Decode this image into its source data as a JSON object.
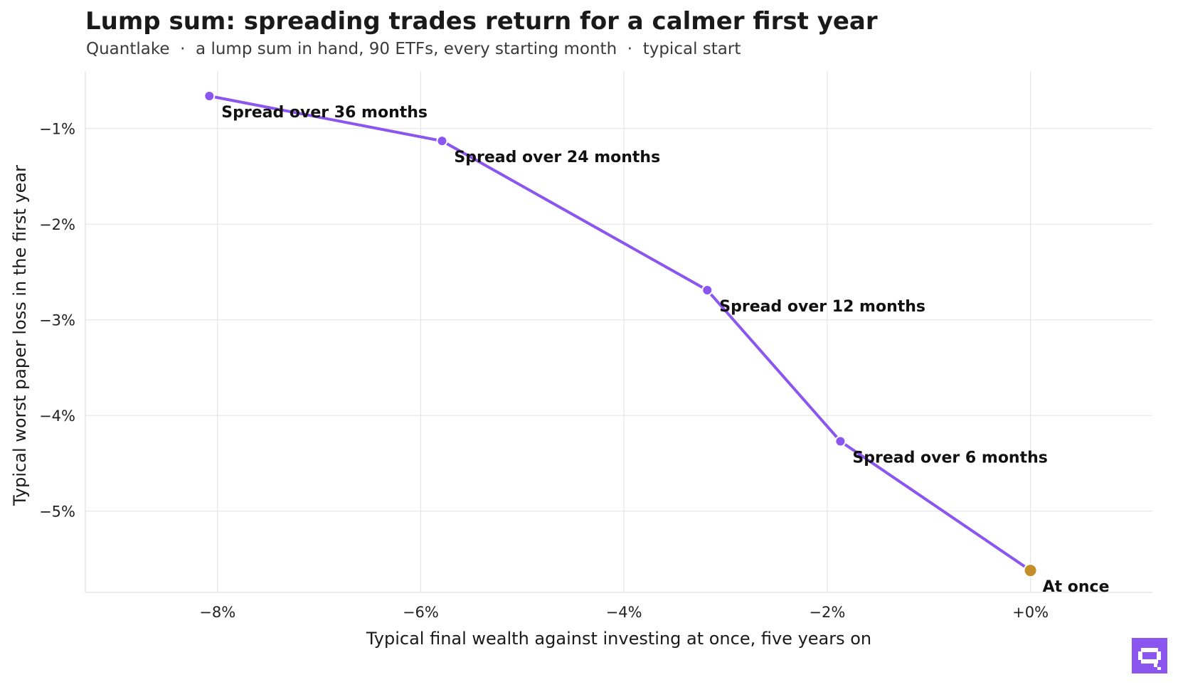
{
  "title": "Lump sum: spreading trades return for a calmer first year",
  "subtitle": "Quantlake  ·  a lump sum in hand, 90 ETFs, every starting month  ·  typical start",
  "colors": {
    "line": "#8b55f0",
    "highlight": "#c48f2a",
    "grid": "#e6e6e6",
    "logo_bg": "#8b55f0"
  },
  "logo_icon": "quantlake-logo-icon",
  "chart_data": {
    "type": "line",
    "title": "Lump sum: spreading trades return for a calmer first year",
    "subtitle": "Quantlake  ·  a lump sum in hand, 90 ETFs, every starting month  ·  typical start",
    "xlabel": "Typical final wealth against investing at once, five years on",
    "ylabel": "Typical worst paper loss in the first year",
    "xlim": [
      -9.3,
      1.2
    ],
    "ylim": [
      -5.85,
      -0.4
    ],
    "x_ticks": [
      -8,
      -6,
      -4,
      -2,
      0
    ],
    "x_tick_labels": [
      "−8%",
      "−6%",
      "−4%",
      "−2%",
      "+0%"
    ],
    "y_ticks": [
      -1,
      -2,
      -3,
      -4,
      -5
    ],
    "y_tick_labels": [
      "−1%",
      "−2%",
      "−3%",
      "−4%",
      "−5%"
    ],
    "grid": true,
    "points": [
      {
        "label": "Spread over 36 months",
        "x": -8.08,
        "y": -0.66,
        "highlight": false
      },
      {
        "label": "Spread over 24 months",
        "x": -5.79,
        "y": -1.13,
        "highlight": false
      },
      {
        "label": "Spread over 12 months",
        "x": -3.18,
        "y": -2.69,
        "highlight": false
      },
      {
        "label": "Spread over 6 months",
        "x": -1.87,
        "y": -4.27,
        "highlight": false
      },
      {
        "label": "At once",
        "x": 0.0,
        "y": -5.62,
        "highlight": true
      }
    ]
  }
}
